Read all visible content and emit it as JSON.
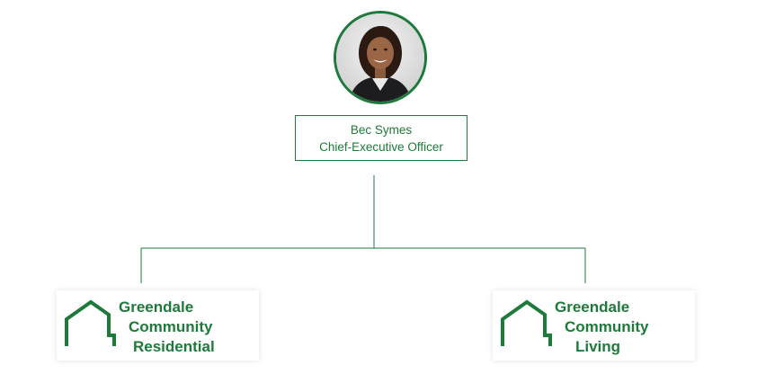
{
  "ceo": {
    "name": "Bec Symes",
    "title": "Chief-Executive Officer"
  },
  "orgs": [
    {
      "line1": "Greendale",
      "line2": "Community",
      "line3": "Residential"
    },
    {
      "line1": "Greendale",
      "line2": "Community",
      "line3": "Living"
    }
  ],
  "colors": {
    "brand_green": "#1e7a3a",
    "connector": "#1e7a3a"
  },
  "icons": [
    "avatar-photo",
    "house-outline-icon"
  ]
}
